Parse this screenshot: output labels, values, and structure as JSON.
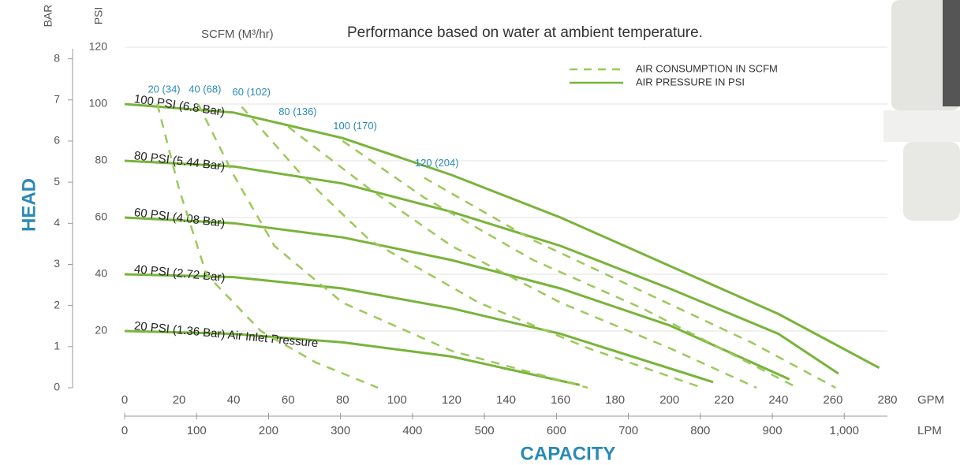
{
  "chart_data": {
    "type": "line",
    "title": "Performance based on water at ambient temperature.",
    "subtitle": "SCFM (M³/hr)",
    "y_label": "HEAD",
    "x_label": "CAPACITY",
    "y_unit": "PSI",
    "y2_unit": "BAR",
    "x_unit": "GPM",
    "x2_unit": "LPM",
    "xlim": [
      0,
      280
    ],
    "xticks": [
      0,
      20,
      40,
      60,
      80,
      100,
      120,
      140,
      160,
      180,
      200,
      220,
      240,
      260,
      280
    ],
    "x2lim": [
      0,
      1060
    ],
    "x2ticks": [
      0,
      100,
      200,
      300,
      400,
      500,
      600,
      700,
      800,
      900,
      {
        "value": 1000,
        "label": "1,000"
      }
    ],
    "ylim": [
      0,
      120
    ],
    "yticks": [
      20,
      40,
      60,
      80,
      100,
      120
    ],
    "y2lim": [
      0,
      8.28
    ],
    "y2ticks": [
      0,
      1,
      2,
      3,
      4,
      5,
      6,
      7,
      8
    ],
    "grid": true,
    "legend": [
      {
        "label": "AIR CONSUMPTION IN SCFM",
        "color": "#9cc95a",
        "dashed": true
      },
      {
        "label": "AIR PRESSURE IN PSI",
        "color": "#78b43a",
        "dashed": false
      }
    ],
    "series": [
      {
        "label": "100 PSI (6.8 Bar)",
        "color": "#78b43a",
        "dashed": false,
        "x": [
          0,
          40,
          80,
          120,
          160,
          200,
          240,
          277
        ],
        "values": [
          100,
          97,
          88,
          75,
          60,
          43,
          26,
          7
        ]
      },
      {
        "label": "80 PSI (5.44 Bar)",
        "color": "#78b43a",
        "dashed": false,
        "x": [
          0,
          40,
          80,
          120,
          160,
          200,
          240,
          262
        ],
        "values": [
          80,
          78,
          72,
          62,
          50,
          35,
          19,
          5
        ]
      },
      {
        "label": "60 PSI (4.08 Bar)",
        "color": "#78b43a",
        "dashed": false,
        "x": [
          0,
          40,
          80,
          120,
          160,
          200,
          244
        ],
        "values": [
          60,
          58,
          53,
          45,
          35,
          22,
          3
        ]
      },
      {
        "label": "40 PSI (2.72 Bar)",
        "color": "#78b43a",
        "dashed": false,
        "x": [
          0,
          40,
          80,
          120,
          160,
          216
        ],
        "values": [
          40,
          39,
          35,
          28,
          19,
          2
        ]
      },
      {
        "label": "20 PSI (1.36 Bar) Air Inlet Pressure",
        "color": "#78b43a",
        "dashed": false,
        "x": [
          0,
          40,
          80,
          120,
          167
        ],
        "values": [
          20,
          19,
          16,
          11,
          1
        ]
      },
      {
        "label": "20 (34)",
        "color": "#9cc95a",
        "dashed": true,
        "x": [
          12,
          20,
          30,
          50,
          70,
          93
        ],
        "values": [
          100,
          70,
          40,
          20,
          9,
          0
        ]
      },
      {
        "label": "40 (68)",
        "color": "#9cc95a",
        "dashed": true,
        "x": [
          27,
          40,
          55,
          80,
          120,
          170
        ],
        "values": [
          100,
          75,
          50,
          30,
          13,
          0
        ]
      },
      {
        "label": "60 (102)",
        "color": "#9cc95a",
        "dashed": true,
        "x": [
          43,
          65,
          90,
          130,
          170,
          212
        ],
        "values": [
          99,
          75,
          52,
          30,
          14,
          0
        ]
      },
      {
        "label": "80 (136)",
        "color": "#9cc95a",
        "dashed": true,
        "x": [
          60,
          90,
          120,
          160,
          200,
          232
        ],
        "values": [
          92,
          70,
          50,
          30,
          14,
          0
        ]
      },
      {
        "label": "100 (170)",
        "color": "#9cc95a",
        "dashed": true,
        "x": [
          80,
          110,
          150,
          190,
          247
        ],
        "values": [
          87,
          67,
          45,
          28,
          0
        ]
      },
      {
        "label": "120 (204)",
        "color": "#9cc95a",
        "dashed": true,
        "x": [
          110,
          150,
          190,
          230,
          261
        ],
        "values": [
          74,
          52,
          34,
          16,
          0
        ]
      }
    ]
  }
}
